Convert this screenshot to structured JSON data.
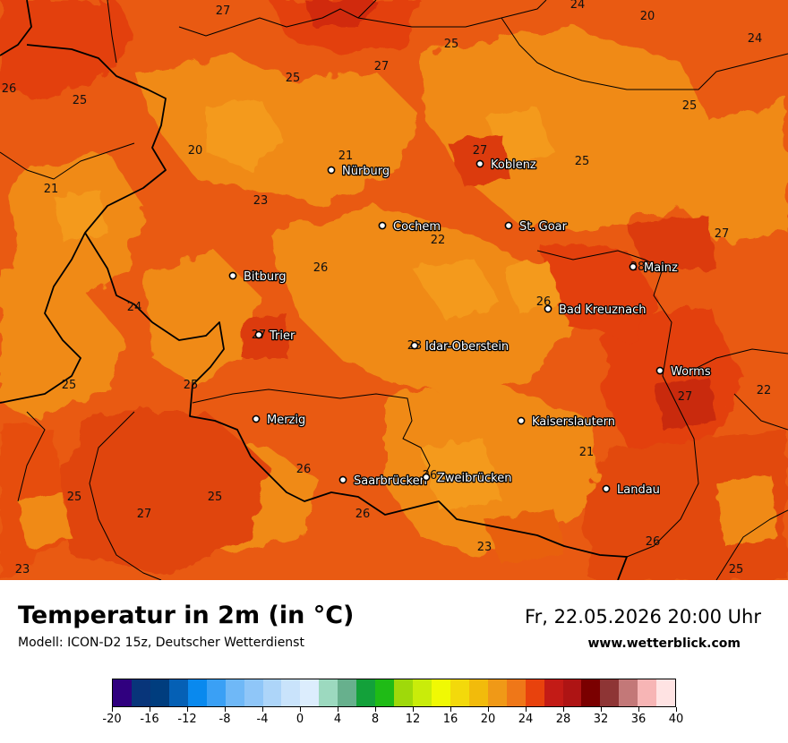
{
  "map": {
    "cities": [
      {
        "id": "nuerburg",
        "name": "Nürburg"
      },
      {
        "id": "koblenz",
        "name": "Koblenz"
      },
      {
        "id": "cochem",
        "name": "Cochem"
      },
      {
        "id": "st-goar",
        "name": "St. Goar"
      },
      {
        "id": "mainz",
        "name": "Mainz"
      },
      {
        "id": "bitburg",
        "name": "Bitburg"
      },
      {
        "id": "bad-kreuznach",
        "name": "Bad Kreuznach"
      },
      {
        "id": "trier",
        "name": "Trier"
      },
      {
        "id": "idar-oberstein",
        "name": "Idar-Oberstein"
      },
      {
        "id": "worms",
        "name": "Worms"
      },
      {
        "id": "merzig",
        "name": "Merzig"
      },
      {
        "id": "kaiserslautern",
        "name": "Kaiserslautern"
      },
      {
        "id": "saarbruecken",
        "name": "Saarbrücken"
      },
      {
        "id": "zweibruecken",
        "name": "Zweibrücken"
      },
      {
        "id": "landau",
        "name": "Landau"
      }
    ],
    "temperature_labels": [
      "27",
      "24",
      "20",
      "25",
      "24",
      "27",
      "26",
      "25",
      "25",
      "25",
      "21",
      "27",
      "25",
      "20",
      "21",
      "23",
      "22",
      "27",
      "26",
      "28",
      "24",
      "26",
      "27",
      "23",
      "25",
      "22",
      "27",
      "25",
      "26",
      "21",
      "25",
      "27",
      "26",
      "25",
      "26",
      "23",
      "23",
      "25",
      "26"
    ]
  },
  "footer": {
    "title": "Temperatur in 2m (in °C)",
    "model": "Modell: ICON-D2 15z, Deutscher Wetterdienst",
    "datetime": "Fr, 22.05.2026 20:00 Uhr",
    "website": "www.wetterblick.com"
  },
  "legend": {
    "colors": [
      "#30007f",
      "#08357a",
      "#003d7e",
      "#0560b5",
      "#0989ee",
      "#3aa0f5",
      "#6fb8f7",
      "#8fc6f8",
      "#add5f9",
      "#c9e3fb",
      "#dcedfd",
      "#9cd9bf",
      "#67b08d",
      "#13a13a",
      "#1fbb16",
      "#9fd90a",
      "#c9ec0a",
      "#f0f904",
      "#f3d90b",
      "#f2bb0b",
      "#f09917",
      "#ef7718",
      "#e8420d",
      "#c31b16",
      "#ae1414",
      "#7a0000",
      "#8e3535",
      "#c37878",
      "#f7b5b5",
      "#ffe3e3"
    ],
    "tick_labels": [
      "-20",
      "-16",
      "-12",
      "-8",
      "-4",
      "0",
      "4",
      "8",
      "12",
      "16",
      "20",
      "24",
      "28",
      "32",
      "36",
      "40"
    ]
  }
}
